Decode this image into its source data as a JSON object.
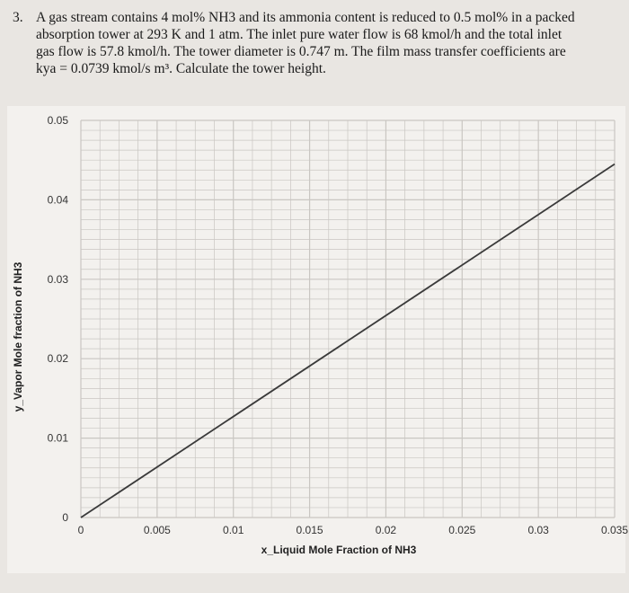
{
  "problem": {
    "number": "3.",
    "lines": [
      "A gas stream contains 4 mol% NH3 and its ammonia content is reduced to 0.5 mol% in a packed",
      "absorption tower at 293 K and 1 atm.  The inlet pure water flow is 68 kmol/h and the total inlet",
      "gas flow is 57.8 kmol/h.  The tower diameter is 0.747 m.  The film mass transfer coefficients are",
      "kya = 0.0739 kmol/s m³.  Calculate the tower height."
    ]
  },
  "chart_data": {
    "type": "line",
    "title": "",
    "xlabel": "x_Liquid Mole Fraction of NH3",
    "ylabel": "y_Vapor Mole fraction of NH3",
    "xlim": [
      0,
      0.035
    ],
    "ylim": [
      0,
      0.05
    ],
    "xticks": [
      "0",
      "0.005",
      "0.01",
      "0.015",
      "0.02",
      "0.025",
      "0.03",
      "0.035"
    ],
    "yticks": [
      "0",
      "0.01",
      "0.02",
      "0.03",
      "0.04",
      "0.05"
    ],
    "grid": true,
    "series": [
      {
        "x": [
          0,
          0.035
        ],
        "y": [
          0,
          0.0445
        ]
      }
    ],
    "line_color": "#3a3a3a",
    "grid_color": "#c9c6c2"
  }
}
